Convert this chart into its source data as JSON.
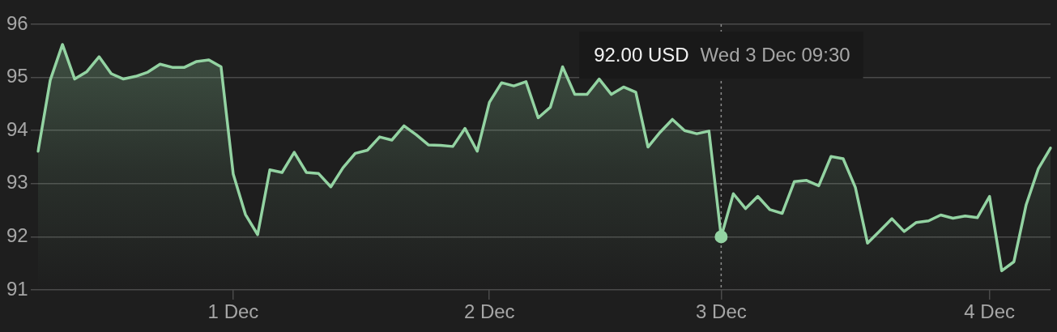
{
  "chart_data": {
    "type": "area",
    "categories": [
      null,
      null,
      null,
      null,
      null,
      null,
      null,
      null,
      null,
      null,
      null,
      null,
      null,
      null,
      null,
      null,
      "1 Dec",
      null,
      null,
      null,
      null,
      null,
      null,
      null,
      null,
      null,
      null,
      null,
      null,
      null,
      null,
      null,
      null,
      null,
      null,
      null,
      null,
      "2 Dec",
      null,
      null,
      null,
      null,
      null,
      null,
      null,
      null,
      null,
      null,
      null,
      null,
      null,
      null,
      null,
      null,
      null,
      null,
      "3 Dec",
      null,
      null,
      null,
      null,
      null,
      null,
      null,
      null,
      null,
      null,
      null,
      null,
      null,
      null,
      null,
      null,
      null,
      null,
      null,
      null,
      null,
      "4 Dec",
      null,
      null,
      null,
      null,
      null
    ],
    "series": [
      {
        "color": "#93d3a2",
        "values": [
          93.61,
          94.95,
          95.62,
          94.97,
          95.11,
          95.39,
          95.07,
          94.97,
          95.02,
          95.1,
          95.25,
          95.19,
          95.19,
          95.3,
          95.33,
          95.2,
          93.18,
          92.42,
          92.04,
          93.26,
          93.21,
          93.59,
          93.21,
          93.19,
          92.94,
          93.3,
          93.57,
          93.63,
          93.88,
          93.82,
          94.09,
          93.92,
          93.73,
          93.72,
          93.7,
          94.04,
          93.61,
          94.53,
          94.9,
          94.84,
          94.92,
          94.24,
          94.44,
          95.2,
          94.68,
          94.68,
          94.97,
          94.68,
          94.82,
          94.72,
          93.69,
          93.97,
          94.21,
          94.0,
          93.94,
          93.99,
          92.0,
          92.81,
          92.53,
          92.76,
          92.51,
          92.44,
          93.04,
          93.06,
          92.96,
          93.51,
          93.47,
          92.93,
          91.88,
          92.11,
          92.34,
          92.1,
          92.27,
          92.3,
          92.41,
          92.35,
          92.39,
          92.36,
          92.76,
          91.36,
          91.53,
          92.6,
          93.28,
          93.67
        ]
      },
      {
        "type": "scatter",
        "x": [
          "3 Dec"
        ],
        "values": [
          92
        ],
        "color": "#93d3a2",
        "marker": "circle"
      }
    ],
    "ylim": [
      91,
      96
    ],
    "yticks": [
      91,
      92,
      93,
      94,
      95,
      96
    ],
    "grid": "y",
    "ref_lines": [
      {
        "axis": "x",
        "value": "3 Dec",
        "label": "Wed 3 Dec 09:30",
        "line_style": "dotted",
        "color": "#8c8c8c"
      }
    ],
    "annotations": [
      "92.00 USD"
    ]
  }
}
